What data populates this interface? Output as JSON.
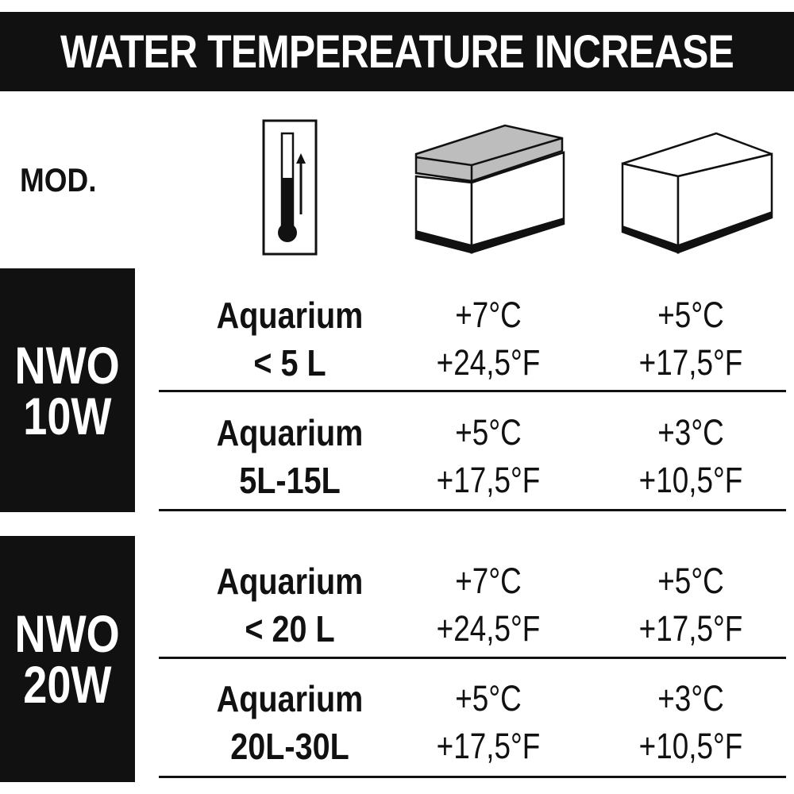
{
  "title": "WATER TEMPEREATURE INCREASE",
  "mod_label": "MOD.",
  "icons": {
    "thermometer": "thermometer-up-icon",
    "covered_tank": "covered-aquarium-icon",
    "open_tank": "open-aquarium-icon"
  },
  "colors": {
    "black": "#111111",
    "lid_gray": "#bdbdbd"
  },
  "models": [
    {
      "line1": "NWO",
      "line2": "10W",
      "rows": [
        {
          "label1": "Aquarium",
          "label2": "< 5 L",
          "covered": {
            "c": "+7°C",
            "f": "+24,5°F"
          },
          "open": {
            "c": "+5°C",
            "f": "+17,5°F"
          }
        },
        {
          "label1": "Aquarium",
          "label2": "5L-15L",
          "covered": {
            "c": "+5°C",
            "f": "+17,5°F"
          },
          "open": {
            "c": "+3°C",
            "f": "+10,5°F"
          }
        }
      ]
    },
    {
      "line1": "NWO",
      "line2": "20W",
      "rows": [
        {
          "label1": "Aquarium",
          "label2": "< 20 L",
          "covered": {
            "c": "+7°C",
            "f": "+24,5°F"
          },
          "open": {
            "c": "+5°C",
            "f": "+17,5°F"
          }
        },
        {
          "label1": "Aquarium",
          "label2": "20L-30L",
          "covered": {
            "c": "+5°C",
            "f": "+17,5°F"
          },
          "open": {
            "c": "+3°C",
            "f": "+10,5°F"
          }
        }
      ]
    }
  ]
}
